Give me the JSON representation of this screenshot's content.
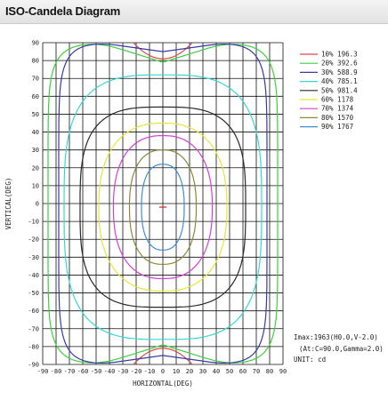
{
  "panel": {
    "title": "ISO-Candela Diagram"
  },
  "chart_data": {
    "type": "contour",
    "xlabel": "HORIZONTAL(DEG)",
    "ylabel": "VERTICAL(DEG)",
    "xlim": [
      -90,
      90
    ],
    "ylim": [
      -90,
      90
    ],
    "xticks": [
      -90,
      -80,
      -70,
      -60,
      -50,
      -40,
      -30,
      -20,
      -10,
      0,
      10,
      20,
      30,
      40,
      50,
      60,
      70,
      80,
      90
    ],
    "yticks": [
      90,
      80,
      70,
      60,
      50,
      40,
      30,
      20,
      10,
      0,
      -10,
      -20,
      -30,
      -40,
      -50,
      -60,
      -70,
      -80,
      -90
    ],
    "grid": true,
    "legend_position": "top-right",
    "series": [
      {
        "name": "10% 196.3",
        "percent": 10,
        "value": 196.3,
        "color": "#d94a4a",
        "shape": "caps",
        "hx": 22,
        "vy": 90
      },
      {
        "name": "20% 392.6",
        "percent": 20,
        "value": 392.6,
        "color": "#3ecf3e",
        "shape": "band",
        "hx": 86,
        "vy": 90
      },
      {
        "name": "30% 588.9",
        "percent": 30,
        "value": 588.9,
        "color": "#3a3aa6",
        "shape": "band",
        "hx": 78,
        "vy": 90
      },
      {
        "name": "40% 785.1",
        "percent": 40,
        "value": 785.1,
        "color": "#37d7d7",
        "shape": "loop",
        "hx": 74,
        "vy": 74
      },
      {
        "name": "50% 981.4",
        "percent": 50,
        "value": 981.4,
        "color": "#2a2a2a",
        "shape": "loop",
        "hx": 62,
        "vy": 56
      },
      {
        "name": "60% 1178",
        "percent": 60,
        "value": 1178,
        "color": "#e6e63a",
        "shape": "loop",
        "hx": 48,
        "vy": 47
      },
      {
        "name": "70% 1374",
        "percent": 70,
        "value": 1374,
        "color": "#d43fd4",
        "shape": "loop",
        "hx": 37,
        "vy": 40
      },
      {
        "name": "80% 1570",
        "percent": 80,
        "value": 1570,
        "color": "#8a8a3a",
        "shape": "loop",
        "hx": 25,
        "vy": 32
      },
      {
        "name": "90% 1767",
        "percent": 90,
        "value": 1767,
        "color": "#3d8fd9",
        "shape": "loop",
        "hx": 16,
        "vy": 24
      }
    ],
    "peak_marker": {
      "x": 0,
      "y": -2,
      "color": "#e02020"
    },
    "info": [
      "Imax:1963(H0.0,V-2.0)",
      "(At:C=90.0,Gamma=2.0)",
      "UNIT: cd"
    ]
  }
}
